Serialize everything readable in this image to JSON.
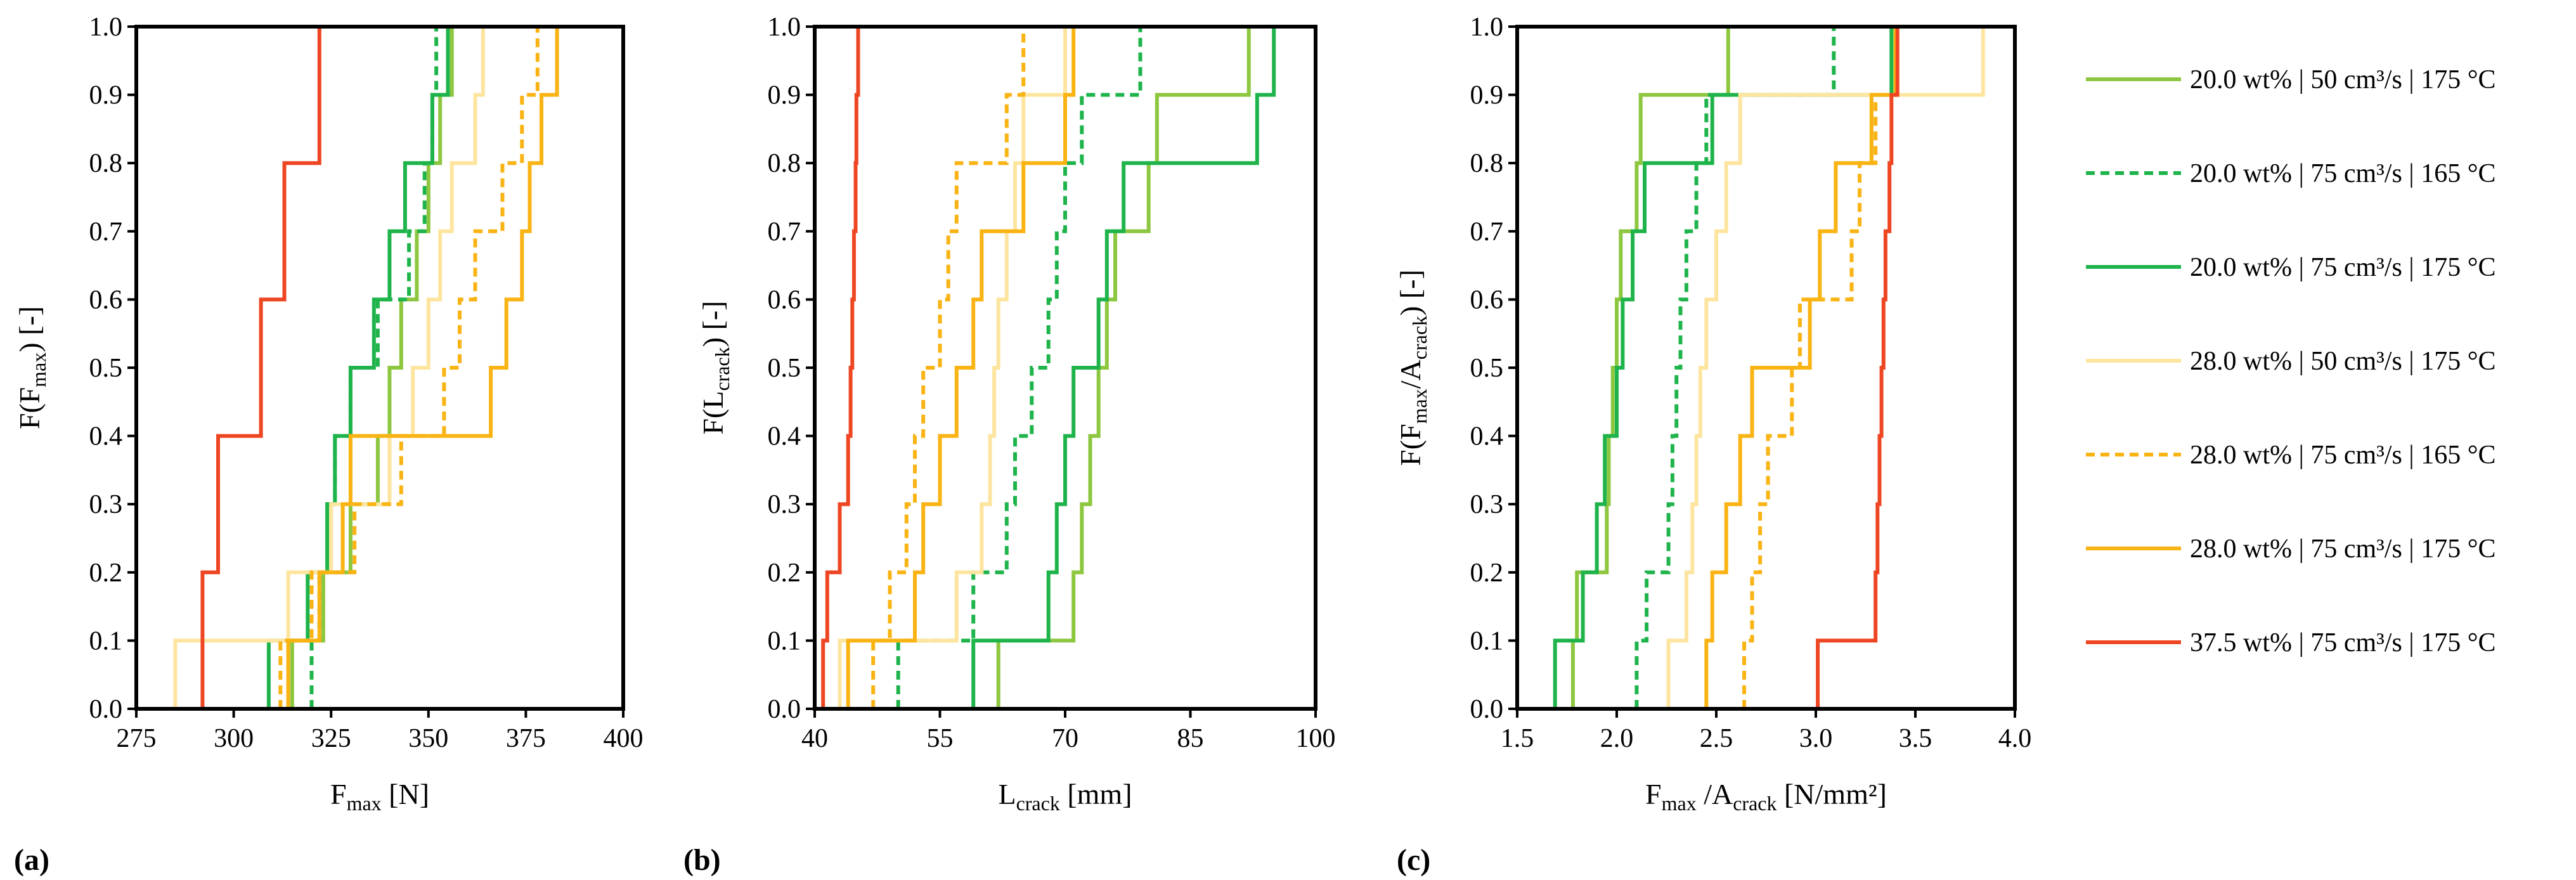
{
  "figure": {
    "title": ""
  },
  "series_styles": [
    {
      "name": "20.0 wt% | 50 cm³/s | 175 °C",
      "color": "#8dc63f",
      "dash": "solid"
    },
    {
      "name": "20.0 wt% | 75 cm³/s | 165 °C",
      "color": "#1fb44b",
      "dash": "dashed"
    },
    {
      "name": "20.0 wt% | 75 cm³/s | 175 °C",
      "color": "#1fb44b",
      "dash": "solid"
    },
    {
      "name": "28.0 wt% | 50 cm³/s | 175 °C",
      "color": "#fde5a0",
      "dash": "solid"
    },
    {
      "name": "28.0 wt% | 75 cm³/s | 165 °C",
      "color": "#f9b313",
      "dash": "dashed"
    },
    {
      "name": "28.0 wt% | 75 cm³/s | 175 °C",
      "color": "#f9b313",
      "dash": "solid"
    },
    {
      "name": "37.5 wt% | 75 cm³/s | 175 °C",
      "color": "#ee4623",
      "dash": "solid"
    }
  ],
  "chart_data": [
    {
      "type": "line",
      "step": true,
      "panel_label": "(a)",
      "ylabel_base": "F(F",
      "ylabel_sub": "max",
      "ylabel_tail": ") [-]",
      "xlabel_base": "F",
      "xlabel_sub": "max",
      "xlabel_tail": "  [N]",
      "xlim": [
        275,
        400
      ],
      "ylim": [
        0,
        1
      ],
      "xticks": [
        "275",
        "300",
        "325",
        "350",
        "375",
        "400"
      ],
      "yticks": [
        "0.0",
        "0.1",
        "0.2",
        "0.3",
        "0.4",
        "0.5",
        "0.6",
        "0.7",
        "0.8",
        "0.9",
        "1.0"
      ],
      "series": [
        {
          "name": "20.0 wt% | 50 cm³/s | 175 °C",
          "x": [
            315,
            323,
            330,
            337,
            340,
            343,
            347,
            350,
            353,
            356
          ]
        },
        {
          "name": "20.0 wt% | 75 cm³/s | 165 °C",
          "x": [
            320,
            322,
            324,
            326,
            330,
            337,
            345,
            349,
            351,
            352
          ]
        },
        {
          "name": "20.0 wt% | 75 cm³/s | 175 °C",
          "x": [
            309,
            319,
            324,
            326,
            330,
            336,
            340,
            344,
            351,
            355
          ]
        },
        {
          "name": "28.0 wt% | 50 cm³/s | 175 °C",
          "x": [
            285,
            314,
            325,
            340,
            346,
            350,
            353,
            356,
            362,
            364
          ]
        },
        {
          "name": "28.0 wt% | 75 cm³/s | 165 °C",
          "x": [
            312,
            320,
            331,
            343,
            354,
            358,
            362,
            369,
            374,
            378
          ]
        },
        {
          "name": "28.0 wt% | 75 cm³/s | 175 °C",
          "x": [
            314,
            322,
            328,
            330,
            366,
            370,
            374,
            376,
            379,
            383
          ]
        },
        {
          "name": "37.5 wt% | 75 cm³/s | 175 °C",
          "x": [
            292,
            296,
            307,
            313,
            322
          ]
        }
      ]
    },
    {
      "type": "line",
      "step": true,
      "panel_label": "(b)",
      "ylabel_base": "F(L",
      "ylabel_sub": "crack",
      "ylabel_tail": ") [-]",
      "xlabel_base": "L",
      "xlabel_sub": "crack",
      "xlabel_tail": " [mm]",
      "xlim": [
        40,
        100
      ],
      "ylim": [
        0,
        1
      ],
      "xticks": [
        "40",
        "55",
        "70",
        "85",
        "100"
      ],
      "yticks": [
        "0.0",
        "0.1",
        "0.2",
        "0.3",
        "0.4",
        "0.5",
        "0.6",
        "0.7",
        "0.8",
        "0.9",
        "1.0"
      ],
      "series": [
        {
          "name": "20.0 wt% | 50 cm³/s | 175 °C",
          "x": [
            62,
            71,
            72,
            73,
            74,
            75,
            76,
            80,
            81,
            92
          ]
        },
        {
          "name": "20.0 wt% | 75 cm³/s | 165 °C",
          "x": [
            50,
            59,
            63,
            64,
            66,
            68,
            69,
            70,
            72,
            79
          ]
        },
        {
          "name": "20.0 wt% | 75 cm³/s | 175 °C",
          "x": [
            59,
            68,
            69,
            70,
            71,
            74,
            75,
            77,
            93,
            95
          ]
        },
        {
          "name": "28.0 wt% | 50 cm³/s | 175 °C",
          "x": [
            43,
            57,
            60,
            61,
            61.5,
            62,
            63,
            64,
            65,
            70
          ]
        },
        {
          "name": "28.0 wt% | 75 cm³/s | 165 °C",
          "x": [
            47,
            49,
            51,
            52,
            53,
            55,
            56,
            57,
            63,
            65
          ]
        },
        {
          "name": "28.0 wt% | 75 cm³/s | 175 °C",
          "x": [
            44,
            52,
            53,
            55,
            57,
            59,
            60,
            65,
            70,
            71
          ]
        },
        {
          "name": "37.5 wt% | 75 cm³/s | 175 °C",
          "x": [
            41,
            41.5,
            43,
            44,
            44.3,
            44.5,
            44.7,
            44.9,
            45.0,
            45.2
          ]
        }
      ]
    },
    {
      "type": "line",
      "step": true,
      "panel_label": "(c)",
      "ylabel_base": "F(F",
      "ylabel_sub": "max",
      "ylabel_mid": "/A",
      "ylabel_sub2": "crack",
      "ylabel_tail": ") [-]",
      "xlabel_base": "F",
      "xlabel_sub": "max",
      "xlabel_mid": " /A",
      "xlabel_sub2": "crack",
      "xlabel_tail": " [N/mm²]",
      "xlim": [
        1.5,
        4.0
      ],
      "ylim": [
        0,
        1
      ],
      "xticks": [
        "1.5",
        "2.0",
        "2.5",
        "3.0",
        "3.5",
        "4.0"
      ],
      "yticks": [
        "0.0",
        "0.1",
        "0.2",
        "0.3",
        "0.4",
        "0.5",
        "0.6",
        "0.7",
        "0.8",
        "0.9",
        "1.0"
      ],
      "series": [
        {
          "name": "20.0 wt% | 50 cm³/s | 175 °C",
          "x": [
            1.78,
            1.8,
            1.95,
            1.96,
            1.98,
            2.0,
            2.02,
            2.1,
            2.12,
            2.56
          ]
        },
        {
          "name": "20.0 wt% | 75 cm³/s | 165 °C",
          "x": [
            2.1,
            2.15,
            2.26,
            2.28,
            2.3,
            2.32,
            2.35,
            2.4,
            2.45,
            3.09
          ]
        },
        {
          "name": "20.0 wt% | 75 cm³/s | 175 °C",
          "x": [
            1.69,
            1.83,
            1.9,
            1.94,
            2.0,
            2.03,
            2.08,
            2.14,
            2.48,
            3.38
          ]
        },
        {
          "name": "28.0 wt% | 50 cm³/s | 175 °C",
          "x": [
            2.26,
            2.35,
            2.38,
            2.4,
            2.42,
            2.45,
            2.5,
            2.55,
            2.62,
            3.84
          ]
        },
        {
          "name": "28.0 wt% | 75 cm³/s | 165 °C",
          "x": [
            2.64,
            2.68,
            2.72,
            2.76,
            2.88,
            2.92,
            3.18,
            3.22,
            3.3,
            3.4
          ]
        },
        {
          "name": "28.0 wt% | 75 cm³/s | 175 °C",
          "x": [
            2.45,
            2.48,
            2.55,
            2.62,
            2.68,
            2.97,
            3.02,
            3.1,
            3.28,
            3.4
          ]
        },
        {
          "name": "37.5 wt% | 75 cm³/s | 175 °C",
          "x": [
            3.01,
            3.3,
            3.31,
            3.32,
            3.33,
            3.34,
            3.35,
            3.37,
            3.38,
            3.41
          ]
        }
      ]
    }
  ]
}
